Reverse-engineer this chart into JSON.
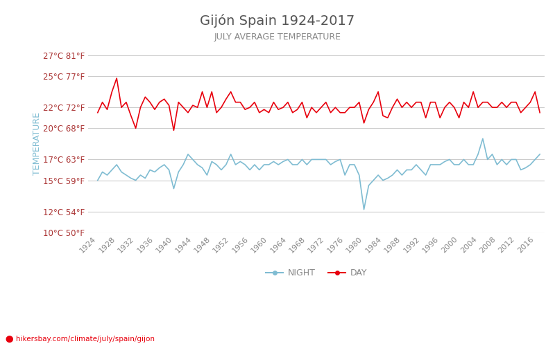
{
  "title": "Gijón Spain 1924-2017",
  "subtitle": "JULY AVERAGE TEMPERATURE",
  "ylabel": "TEMPERATURE",
  "xlabel_url": "hikersbay.com/climate/july/spain/gijon",
  "years": [
    1924,
    1925,
    1926,
    1927,
    1928,
    1929,
    1930,
    1931,
    1932,
    1933,
    1934,
    1935,
    1936,
    1937,
    1938,
    1939,
    1940,
    1941,
    1942,
    1943,
    1944,
    1945,
    1946,
    1947,
    1948,
    1949,
    1950,
    1951,
    1952,
    1953,
    1954,
    1955,
    1956,
    1957,
    1958,
    1959,
    1960,
    1961,
    1962,
    1963,
    1964,
    1965,
    1966,
    1967,
    1968,
    1969,
    1970,
    1971,
    1972,
    1973,
    1974,
    1975,
    1976,
    1977,
    1978,
    1979,
    1980,
    1981,
    1982,
    1983,
    1984,
    1985,
    1986,
    1987,
    1988,
    1989,
    1990,
    1991,
    1992,
    1993,
    1994,
    1995,
    1996,
    1997,
    1998,
    1999,
    2000,
    2001,
    2002,
    2003,
    2004,
    2005,
    2006,
    2007,
    2008,
    2009,
    2010,
    2011,
    2012,
    2013,
    2014,
    2015,
    2016,
    2017
  ],
  "day_temps": [
    21.5,
    22.5,
    21.8,
    23.5,
    24.8,
    22.0,
    22.5,
    21.2,
    20.0,
    22.0,
    23.0,
    22.5,
    21.8,
    22.5,
    22.8,
    22.2,
    19.8,
    22.5,
    22.0,
    21.5,
    22.2,
    22.0,
    23.5,
    22.0,
    23.5,
    21.5,
    22.0,
    22.8,
    23.5,
    22.5,
    22.5,
    21.8,
    22.0,
    22.5,
    21.5,
    21.8,
    21.5,
    22.5,
    21.8,
    22.0,
    22.5,
    21.5,
    21.8,
    22.5,
    21.0,
    22.0,
    21.5,
    22.0,
    22.5,
    21.5,
    22.0,
    21.5,
    21.5,
    22.0,
    22.0,
    22.5,
    20.5,
    21.8,
    22.5,
    23.5,
    21.2,
    21.0,
    22.0,
    22.8,
    22.0,
    22.5,
    22.0,
    22.5,
    22.5,
    21.0,
    22.5,
    22.5,
    21.0,
    22.0,
    22.5,
    22.0,
    21.0,
    22.5,
    22.0,
    23.5,
    22.0,
    22.5,
    22.5,
    22.0,
    22.0,
    22.5,
    22.0,
    22.5,
    22.5,
    21.5,
    22.0,
    22.5,
    23.5,
    21.5
  ],
  "night_temps": [
    15.0,
    15.8,
    15.5,
    16.0,
    16.5,
    15.8,
    15.5,
    15.2,
    15.0,
    15.5,
    15.2,
    16.0,
    15.8,
    16.2,
    16.5,
    16.0,
    14.2,
    15.8,
    16.5,
    17.5,
    17.0,
    16.5,
    16.2,
    15.5,
    16.8,
    16.5,
    16.0,
    16.5,
    17.5,
    16.5,
    16.8,
    16.5,
    16.0,
    16.5,
    16.0,
    16.5,
    16.5,
    16.8,
    16.5,
    16.8,
    17.0,
    16.5,
    16.5,
    17.0,
    16.5,
    17.0,
    17.0,
    17.0,
    17.0,
    16.5,
    16.8,
    17.0,
    15.5,
    16.5,
    16.5,
    15.5,
    12.2,
    14.5,
    15.0,
    15.5,
    15.0,
    15.2,
    15.5,
    16.0,
    15.5,
    16.0,
    16.0,
    16.5,
    16.0,
    15.5,
    16.5,
    16.5,
    16.5,
    16.8,
    17.0,
    16.5,
    16.5,
    17.0,
    16.5,
    16.5,
    17.5,
    19.0,
    17.0,
    17.5,
    16.5,
    17.0,
    16.5,
    17.0,
    17.0,
    16.0,
    16.2,
    16.5,
    17.0,
    17.5
  ],
  "ylim": [
    10,
    27
  ],
  "yticks_c": [
    10,
    12,
    15,
    17,
    20,
    22,
    25,
    27
  ],
  "ytick_labels": [
    "10°C 50°F",
    "12°C 54°F",
    "15°C 59°F",
    "17°C 63°F",
    "20°C 68°F",
    "22°C 72°F",
    "25°C 77°F",
    "27°C 81°F"
  ],
  "day_color": "#e8000d",
  "night_color": "#7fbcd2",
  "background_color": "#ffffff",
  "grid_color": "#cccccc",
  "title_color": "#555555",
  "subtitle_color": "#888888",
  "ylabel_color": "#7fbcd2",
  "tick_label_color": "#aa3333",
  "url_color": "#e8000d",
  "legend_night_color": "#7fbcd2",
  "legend_day_color": "#e8000d"
}
